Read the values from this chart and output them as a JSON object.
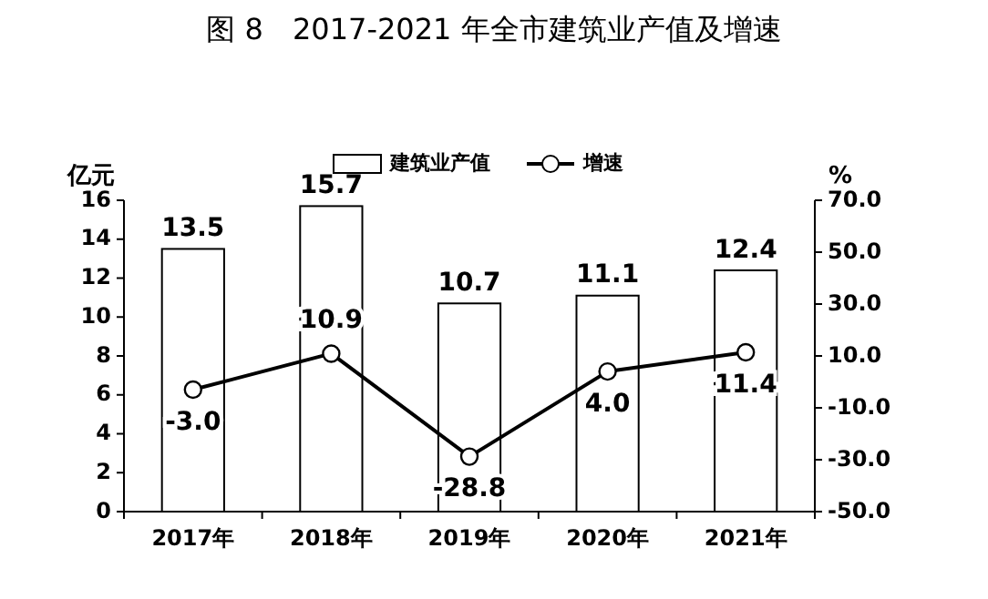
{
  "chart_data": {
    "type": "bar",
    "title": "图 8　2017-2021 年全市建筑业产值及增速",
    "ylabel": "亿元",
    "y2label": "%",
    "categories": [
      "2017年",
      "2018年",
      "2019年",
      "2020年",
      "2021年"
    ],
    "series": [
      {
        "name": "建筑业产值",
        "color": "#ffffff",
        "values": [
          13.5,
          15.7,
          10.7,
          11.1,
          12.4
        ]
      },
      {
        "name": "增速",
        "type": "line",
        "axis": "y2",
        "color": "#000000",
        "values": [
          -3.0,
          10.9,
          -28.8,
          4.0,
          11.4
        ],
        "value_labels": [
          "-3.0",
          "10.9",
          "-28.8",
          "4.0",
          "11.4"
        ]
      }
    ],
    "ylim": [
      0,
      16
    ],
    "yticks": [
      0,
      2,
      4,
      6,
      8,
      10,
      12,
      14,
      16
    ],
    "y2lim": [
      -50,
      70
    ],
    "y2ticks": [
      {
        "value": -50,
        "label": "-50.0"
      },
      {
        "value": -30,
        "label": "-30.0"
      },
      {
        "value": -10,
        "label": "-10.0"
      },
      {
        "value": 10,
        "label": "10.0"
      },
      {
        "value": 30,
        "label": "30.0"
      },
      {
        "value": 50,
        "label": "50.0"
      },
      {
        "value": 70,
        "label": "70.0"
      }
    ],
    "data_labels": true,
    "legend": "top",
    "marker": "circle",
    "line_style": "solid"
  }
}
